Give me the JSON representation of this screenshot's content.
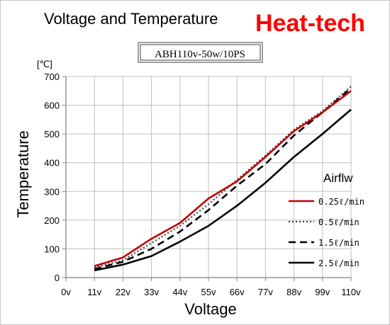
{
  "chart_data": {
    "type": "line",
    "title": "Voltage and Temperature",
    "brand": "Heat-tech",
    "subtitle": "ABH110v-50w/10PS",
    "xlabel": "Voltage",
    "ylabel": "Temperature",
    "y_unit": "[℃]",
    "categories": [
      "0v",
      "11v",
      "22v",
      "33v",
      "44v",
      "55v",
      "66v",
      "77v",
      "88v",
      "99v",
      "110v"
    ],
    "ylim": [
      0,
      700
    ],
    "yticks": [
      "0",
      "100",
      "200",
      "300",
      "400",
      "500",
      "600",
      "700"
    ],
    "grid": true,
    "legend_title": "Airflw",
    "legend_position": "right",
    "series": [
      {
        "name": "0.25ℓ/min",
        "color": "#c00000",
        "style": "solid",
        "values": [
          null,
          40,
          70,
          135,
          190,
          275,
          335,
          420,
          510,
          575,
          650
        ]
      },
      {
        "name": "0.5ℓ/min",
        "color": "#404040",
        "style": "dotted",
        "values": [
          null,
          35,
          60,
          120,
          180,
          255,
          340,
          425,
          515,
          580,
          665
        ]
      },
      {
        "name": "1.5ℓ/min",
        "color": "#000000",
        "style": "dashed",
        "values": [
          null,
          30,
          55,
          100,
          160,
          235,
          320,
          395,
          495,
          575,
          660
        ]
      },
      {
        "name": "2.5ℓ/min",
        "color": "#000000",
        "style": "solid",
        "values": [
          null,
          25,
          45,
          75,
          125,
          180,
          250,
          330,
          420,
          500,
          585
        ]
      }
    ],
    "colors": {
      "brand": "#ff0000",
      "grid": "#bfbfbf",
      "axis": "#808080"
    }
  }
}
